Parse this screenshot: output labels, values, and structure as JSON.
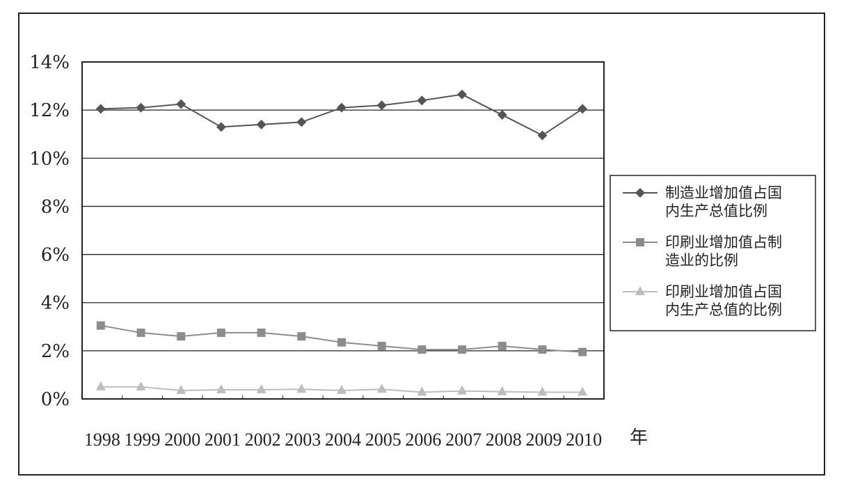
{
  "chart_data": {
    "type": "line",
    "title": "",
    "xlabel": "年",
    "ylabel": "",
    "ylim": [
      0,
      14
    ],
    "yticks": [
      "0%",
      "2%",
      "4%",
      "6%",
      "8%",
      "10%",
      "12%",
      "14%"
    ],
    "ytick_values": [
      0,
      2,
      4,
      6,
      8,
      10,
      12,
      14
    ],
    "categories": [
      "1998",
      "1999",
      "2000",
      "2001",
      "2002",
      "2003",
      "2004",
      "2005",
      "2006",
      "2007",
      "2008",
      "2009",
      "2010"
    ],
    "grid": "horizontal",
    "legend_position": "right",
    "series": [
      {
        "name": "制造业增加值占国内生产总值比例",
        "legend_lines": [
          "制造业增加值占国",
          "内生产总值比例"
        ],
        "color": "#555555",
        "marker": "diamond",
        "values": [
          12.05,
          12.1,
          12.25,
          11.3,
          11.4,
          11.5,
          12.1,
          12.2,
          12.4,
          12.65,
          11.8,
          10.95,
          12.05
        ]
      },
      {
        "name": "印刷业增加值占制造业的比例",
        "legend_lines": [
          "印刷业增加值占制",
          "造业的比例"
        ],
        "color": "#8c8c8c",
        "marker": "square",
        "values": [
          3.05,
          2.75,
          2.6,
          2.75,
          2.75,
          2.6,
          2.35,
          2.2,
          2.05,
          2.05,
          2.2,
          2.05,
          1.95
        ]
      },
      {
        "name": "印刷业增加值占国内生产总值的比例",
        "legend_lines": [
          "印刷业增加值占国",
          "内生产总值的比例"
        ],
        "color": "#bdbdbd",
        "marker": "triangle",
        "values": [
          0.5,
          0.5,
          0.35,
          0.38,
          0.38,
          0.4,
          0.35,
          0.4,
          0.28,
          0.33,
          0.3,
          0.28,
          0.28
        ]
      }
    ]
  }
}
